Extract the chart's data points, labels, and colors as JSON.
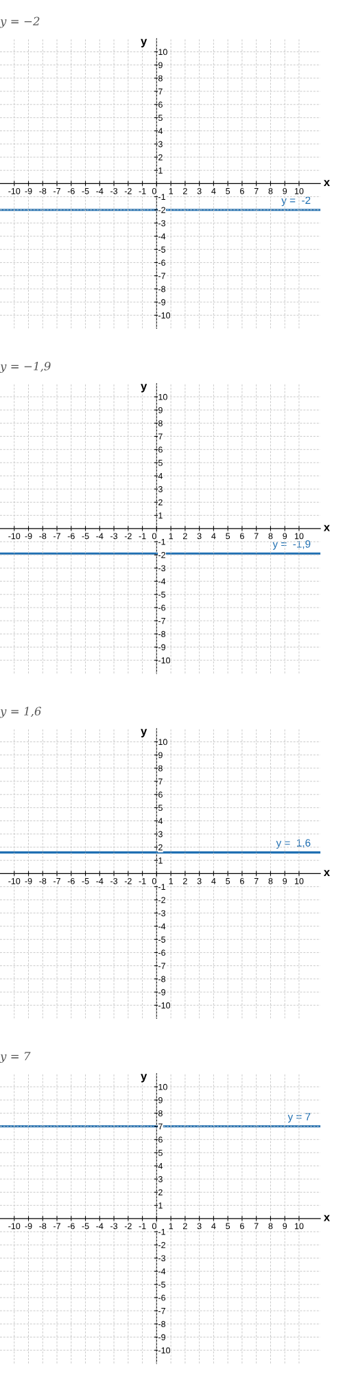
{
  "chart_data": [
    {
      "type": "line",
      "title": "y = −2",
      "xlabel": "x",
      "ylabel": "y",
      "xlim": [
        -11,
        11.5
      ],
      "ylim": [
        -11,
        11
      ],
      "xticks": [
        -10,
        -9,
        -8,
        -7,
        -6,
        -5,
        -4,
        -3,
        -2,
        -1,
        0,
        1,
        2,
        3,
        4,
        5,
        6,
        7,
        8,
        9,
        10
      ],
      "yticks": [
        -10,
        -9,
        -8,
        -7,
        -6,
        -5,
        -4,
        -3,
        -2,
        -1,
        1,
        2,
        3,
        4,
        5,
        6,
        7,
        8,
        9,
        10
      ],
      "grid": true,
      "ref_lines": [
        {
          "axis": "y",
          "value": -2,
          "label": "y =  -2",
          "color": "#1f6fb2"
        }
      ]
    },
    {
      "type": "line",
      "title": "y = −1,9",
      "xlabel": "x",
      "ylabel": "y",
      "xlim": [
        -11,
        11.5
      ],
      "ylim": [
        -11,
        11
      ],
      "xticks": [
        -10,
        -9,
        -8,
        -7,
        -6,
        -5,
        -4,
        -3,
        -2,
        -1,
        0,
        1,
        2,
        3,
        4,
        5,
        6,
        7,
        8,
        9,
        10
      ],
      "yticks": [
        -10,
        -9,
        -8,
        -7,
        -6,
        -5,
        -4,
        -3,
        -2,
        -1,
        1,
        2,
        3,
        4,
        5,
        6,
        7,
        8,
        9,
        10
      ],
      "grid": true,
      "ref_lines": [
        {
          "axis": "y",
          "value": -1.9,
          "label": "y =  -1,9",
          "color": "#1f6fb2"
        }
      ]
    },
    {
      "type": "line",
      "title": "y = 1,6",
      "xlabel": "x",
      "ylabel": "y",
      "xlim": [
        -11,
        11.5
      ],
      "ylim": [
        -11,
        11
      ],
      "xticks": [
        -10,
        -9,
        -8,
        -7,
        -6,
        -5,
        -4,
        -3,
        -2,
        -1,
        0,
        1,
        2,
        3,
        4,
        5,
        6,
        7,
        8,
        9,
        10
      ],
      "yticks": [
        -10,
        -9,
        -8,
        -7,
        -6,
        -5,
        -4,
        -3,
        -2,
        -1,
        1,
        2,
        3,
        4,
        5,
        6,
        7,
        8,
        9,
        10
      ],
      "grid": true,
      "ref_lines": [
        {
          "axis": "y",
          "value": 1.6,
          "label": "y =  1,6",
          "color": "#1f6fb2"
        }
      ]
    },
    {
      "type": "line",
      "title": "y = 7",
      "xlabel": "x",
      "ylabel": "y",
      "xlim": [
        -11,
        11.5
      ],
      "ylim": [
        -11,
        11
      ],
      "xticks": [
        -10,
        -9,
        -8,
        -7,
        -6,
        -5,
        -4,
        -3,
        -2,
        -1,
        0,
        1,
        2,
        3,
        4,
        5,
        6,
        7,
        8,
        9,
        10
      ],
      "yticks": [
        -10,
        -9,
        -8,
        -7,
        -6,
        -5,
        -4,
        -3,
        -2,
        -1,
        1,
        2,
        3,
        4,
        5,
        6,
        7,
        8,
        9,
        10
      ],
      "grid": true,
      "ref_lines": [
        {
          "axis": "y",
          "value": 7,
          "label": "y = 7",
          "color": "#1f6fb2"
        }
      ]
    }
  ]
}
